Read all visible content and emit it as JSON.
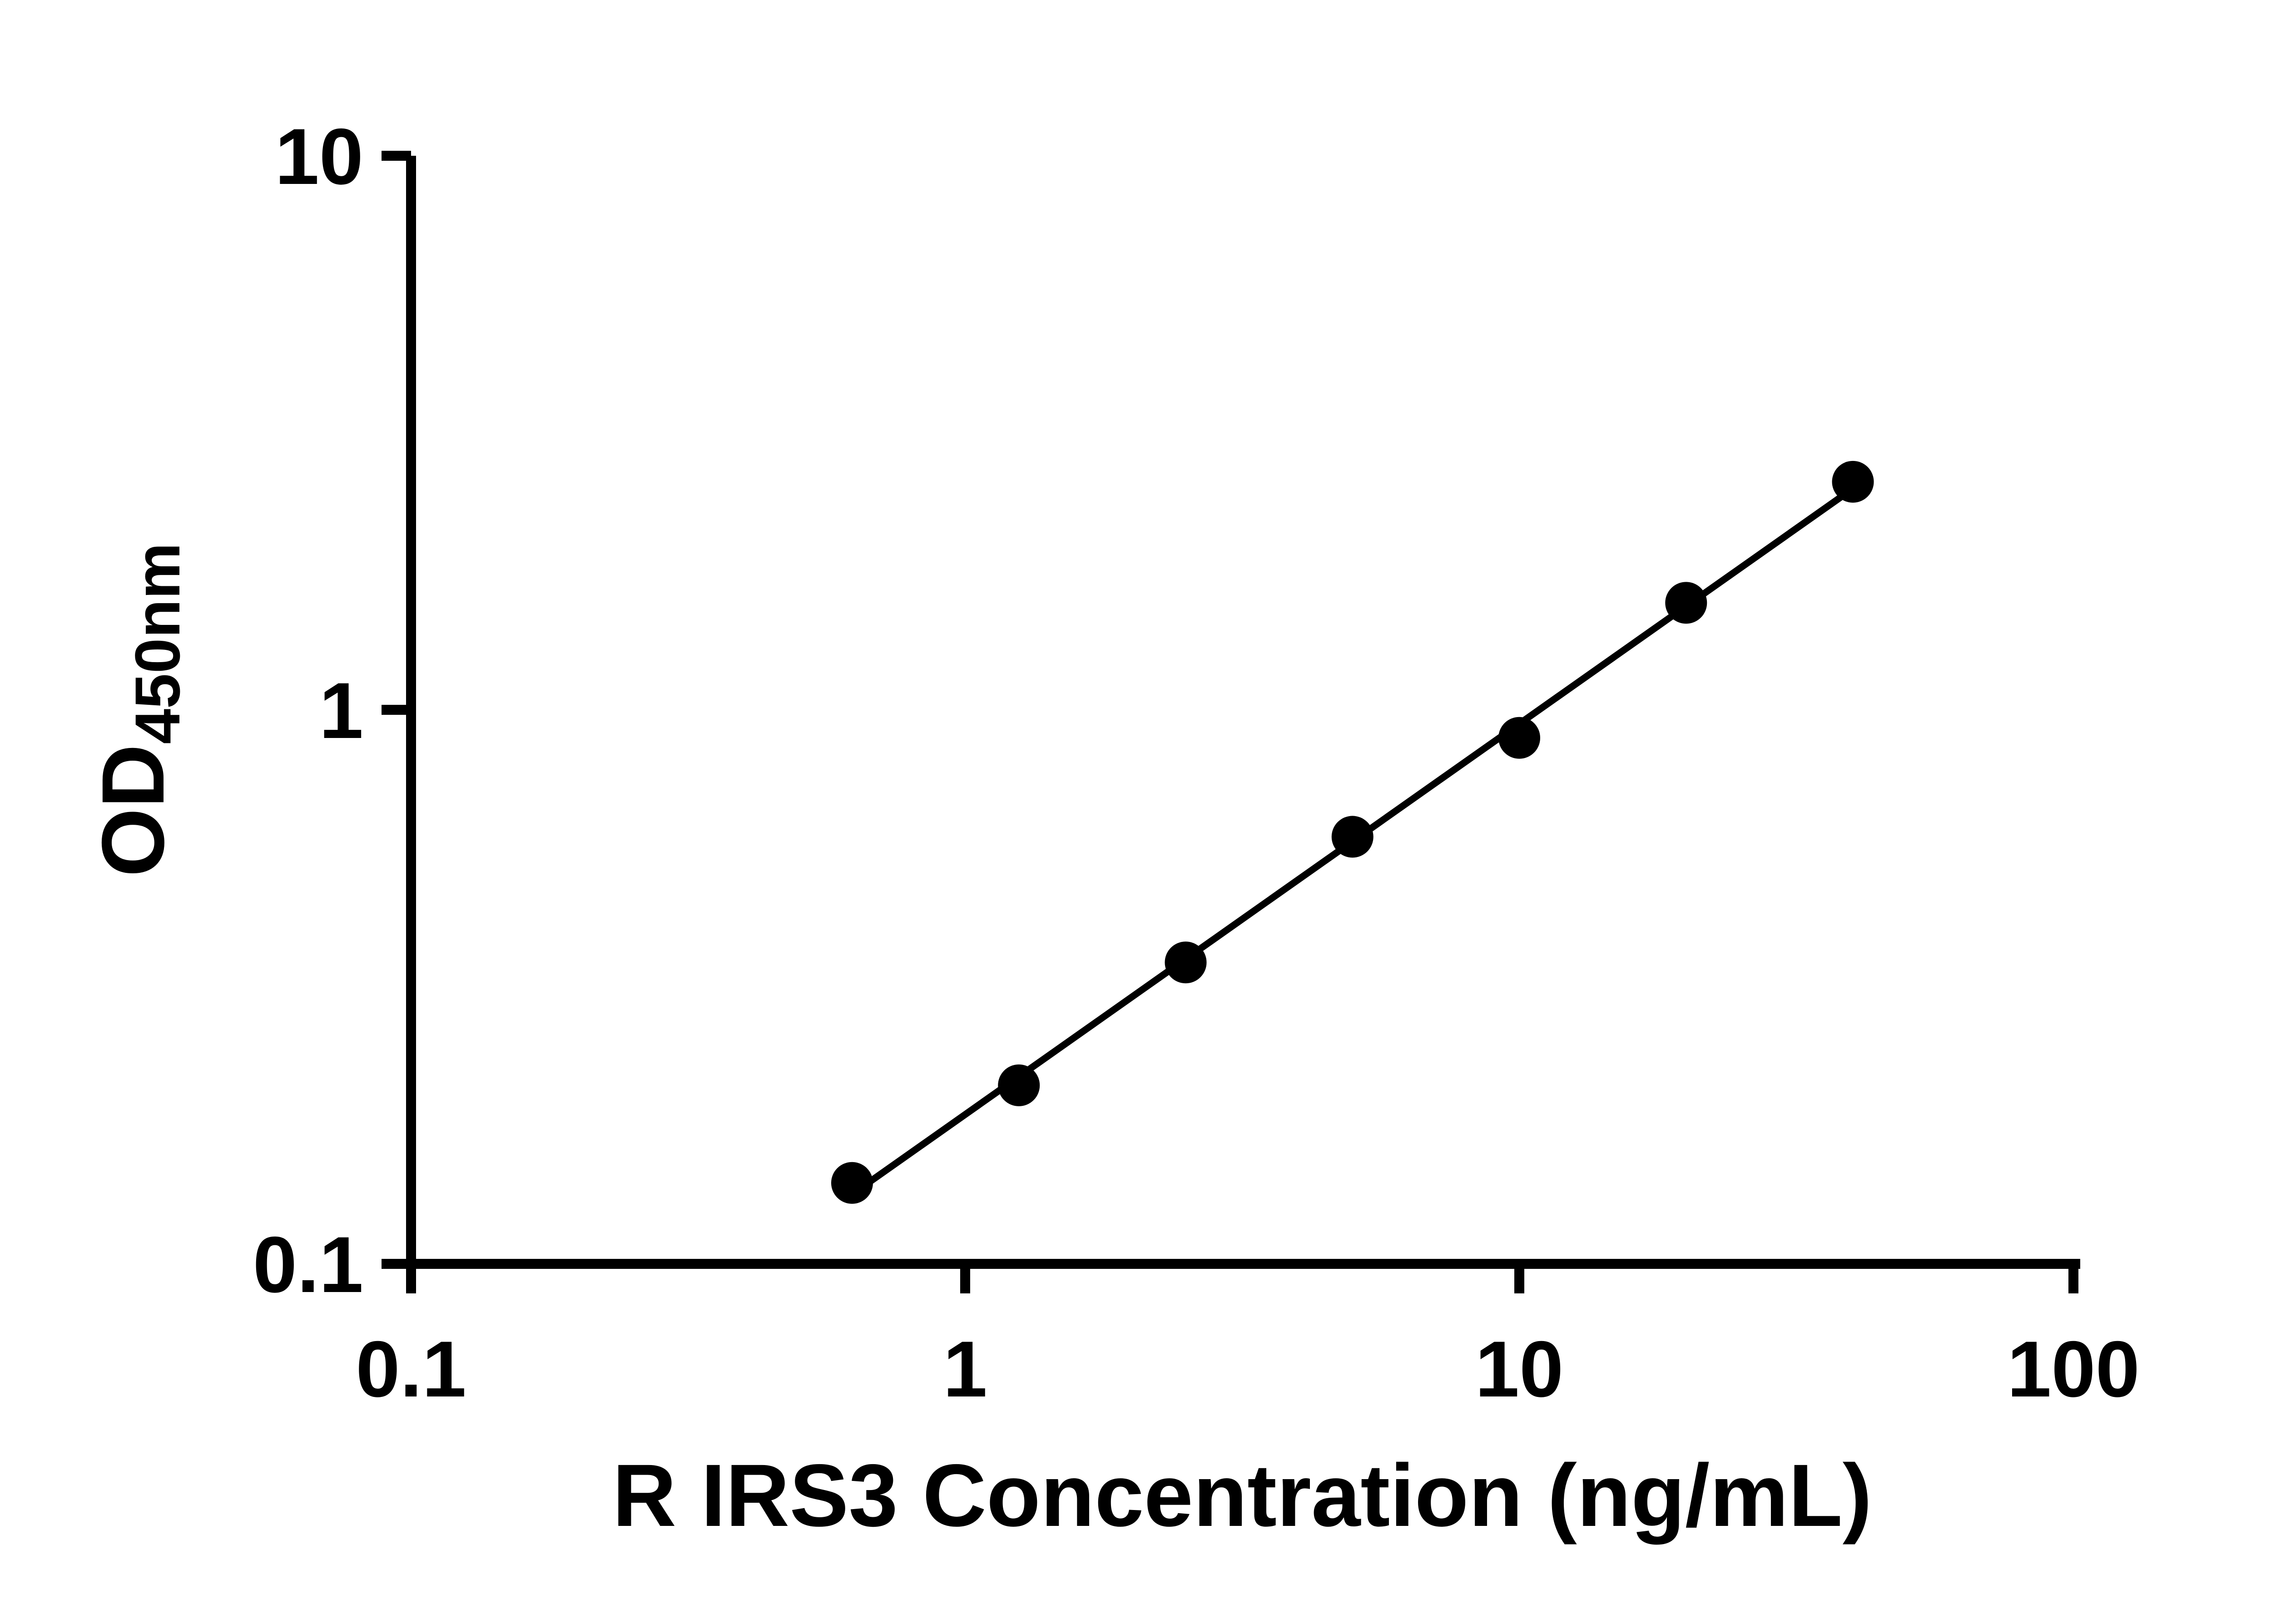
{
  "figure": {
    "background_color": "#ffffff",
    "axis_color": "#000000"
  },
  "chart_data": {
    "type": "scatter",
    "title": "",
    "xlabel": "R IRS3 Concentration (ng/mL)",
    "ylabel_main": "OD",
    "ylabel_sub": "450nm",
    "x_scale": "log",
    "y_scale": "log",
    "xlim": [
      0.1,
      100
    ],
    "ylim": [
      0.1,
      10
    ],
    "x_ticks": [
      0.1,
      1,
      10,
      100
    ],
    "x_tick_labels": [
      "0.1",
      "1",
      "10",
      "100"
    ],
    "y_ticks": [
      0.1,
      1,
      10
    ],
    "y_tick_labels": [
      "0.1",
      "1",
      "10"
    ],
    "grid": "off",
    "legend": "none",
    "marker_color": "#000000",
    "line_color": "#000000",
    "trend_line": true,
    "points": [
      {
        "x": 0.625,
        "y": 0.14
      },
      {
        "x": 1.25,
        "y": 0.21
      },
      {
        "x": 2.5,
        "y": 0.35
      },
      {
        "x": 5,
        "y": 0.59
      },
      {
        "x": 10,
        "y": 0.89
      },
      {
        "x": 20,
        "y": 1.56
      },
      {
        "x": 40,
        "y": 2.58
      }
    ]
  }
}
